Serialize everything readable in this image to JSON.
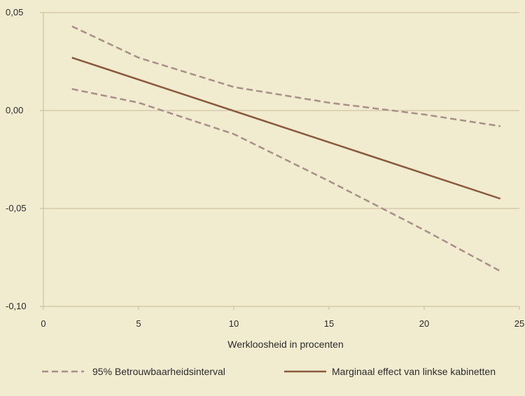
{
  "chart_data": {
    "type": "line",
    "xlabel": "Werkloosheid in procenten",
    "ylabel": "",
    "xlim": [
      0,
      25
    ],
    "ylim": [
      -0.1,
      0.05
    ],
    "x_ticks": [
      0,
      5,
      10,
      15,
      20,
      25
    ],
    "x_tick_labels": [
      "0",
      "5",
      "10",
      "15",
      "20",
      "25"
    ],
    "y_ticks": [
      -0.1,
      -0.05,
      0.0,
      0.05
    ],
    "y_tick_labels": [
      "-0,10",
      "-0,05",
      "0,00",
      "0,05"
    ],
    "grid": "horizontal",
    "legend_position": "bottom",
    "series": [
      {
        "name": "Marginaal effect van linkse kabinetten",
        "style": "solid",
        "color": "#8b5a3c",
        "x": [
          1.5,
          24
        ],
        "y": [
          0.027,
          -0.045
        ]
      },
      {
        "name": "95% Betrouwbaarheidsinterval",
        "style": "dashed",
        "color": "#a89088",
        "x": [
          1.5,
          5,
          10,
          15,
          20,
          24
        ],
        "y": [
          0.043,
          0.027,
          0.012,
          0.004,
          -0.002,
          -0.008
        ]
      },
      {
        "name": "95% Betrouwbaarheidsinterval",
        "style": "dashed",
        "color": "#a89088",
        "x": [
          1.5,
          5,
          10,
          15,
          20,
          24
        ],
        "y": [
          0.011,
          0.004,
          -0.012,
          -0.036,
          -0.061,
          -0.082
        ]
      }
    ],
    "legend": [
      {
        "label": "95% Betrouwbaarheidsinterval",
        "style": "dashed",
        "color": "#a89088"
      },
      {
        "label": "Marginaal effect van linkse kabinetten",
        "style": "solid",
        "color": "#8b5a3c"
      }
    ],
    "colors": {
      "background": "#f1ebd0",
      "axis": "#c9b89a",
      "grid": "#c9b89a"
    }
  }
}
